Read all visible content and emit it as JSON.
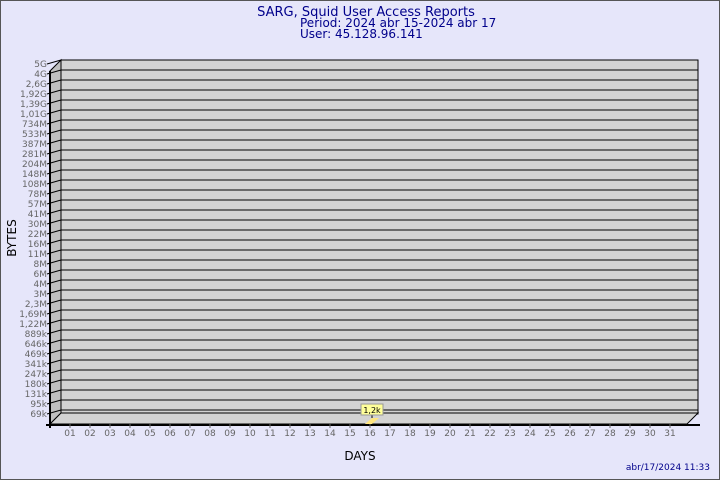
{
  "chart_data": {
    "type": "bar",
    "title": "SARG, Squid User Access Reports",
    "subtitle_period": "Period: 2024 abr 15-2024 abr 17",
    "subtitle_user": "User: 45.128.96.141",
    "xlabel": "DAYS",
    "ylabel": "BYTES",
    "y_scale": "log",
    "y_tick_labels": [
      "5G",
      "4G",
      "2,6G",
      "1,92G",
      "1,39G",
      "1,01G",
      "734M",
      "533M",
      "387M",
      "281M",
      "204M",
      "148M",
      "108M",
      "78M",
      "57M",
      "41M",
      "30M",
      "22M",
      "16M",
      "11M",
      "8M",
      "6M",
      "4M",
      "3M",
      "2,3M",
      "1,69M",
      "1,22M",
      "889k",
      "646k",
      "469k",
      "341k",
      "247k",
      "180k",
      "131k",
      "95k",
      "69k"
    ],
    "categories": [
      "01",
      "02",
      "03",
      "04",
      "05",
      "06",
      "07",
      "08",
      "09",
      "10",
      "11",
      "12",
      "13",
      "14",
      "15",
      "16",
      "17",
      "18",
      "19",
      "20",
      "21",
      "22",
      "23",
      "24",
      "25",
      "26",
      "27",
      "28",
      "29",
      "30",
      "31"
    ],
    "values": [
      null,
      null,
      null,
      null,
      null,
      null,
      null,
      null,
      null,
      null,
      null,
      null,
      null,
      null,
      null,
      1200,
      null,
      null,
      null,
      null,
      null,
      null,
      null,
      null,
      null,
      null,
      null,
      null,
      null,
      null,
      null
    ],
    "data_labels": {
      "16": "1,2k"
    },
    "grid": true,
    "colors": {
      "title": "#00008b",
      "plot_bg": "#d3d3d3",
      "bar": "#ffe680",
      "label_box": "#ffff99",
      "page_bg": "#e6e6fa"
    }
  },
  "footer": {
    "timestamp": "abr/17/2024 11:33"
  }
}
